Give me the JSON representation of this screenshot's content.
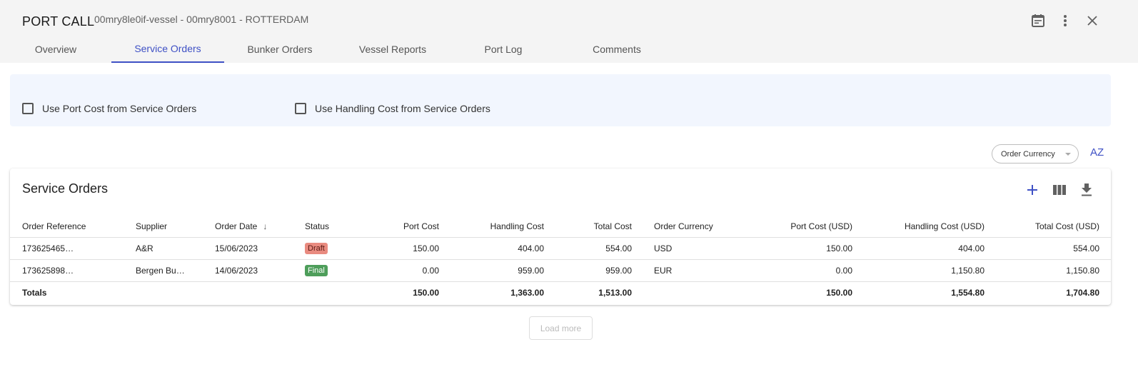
{
  "header": {
    "title": "PORT CALL",
    "subtitle": "00mry8le0if-vessel - 00mry8001 - ROTTERDAM"
  },
  "tabs": [
    {
      "label": "Overview"
    },
    {
      "label": "Service Orders",
      "active": true
    },
    {
      "label": "Bunker Orders"
    },
    {
      "label": "Vessel Reports"
    },
    {
      "label": "Port Log"
    },
    {
      "label": "Comments"
    }
  ],
  "options": {
    "port_cost": "Use Port Cost from Service Orders",
    "handling_cost": "Use Handling Cost from Service Orders"
  },
  "currency_select": {
    "value": "Order Currency"
  },
  "sort_label": "AZ",
  "card": {
    "title": "Service Orders"
  },
  "table": {
    "columns": [
      "Order Reference",
      "Supplier",
      "Order Date",
      "Status",
      "Port Cost",
      "Handling Cost",
      "Total Cost",
      "Order Currency",
      "Port Cost (USD)",
      "Handling Cost (USD)",
      "Total Cost (USD)"
    ],
    "rows": [
      {
        "ref": "173625465…",
        "supplier": "A&R",
        "date": "15/06/2023",
        "status": "Draft",
        "port": "150.00",
        "handling": "404.00",
        "total": "554.00",
        "currency": "USD",
        "port_usd": "150.00",
        "handling_usd": "404.00",
        "total_usd": "554.00"
      },
      {
        "ref": "173625898…",
        "supplier": "Bergen Bu…",
        "date": "14/06/2023",
        "status": "Final",
        "port": "0.00",
        "handling": "959.00",
        "total": "959.00",
        "currency": "EUR",
        "port_usd": "0.00",
        "handling_usd": "1,150.80",
        "total_usd": "1,150.80"
      }
    ],
    "totals": {
      "label": "Totals",
      "port": "150.00",
      "handling": "1,363.00",
      "total": "1,513.00",
      "port_usd": "150.00",
      "handling_usd": "1,554.80",
      "total_usd": "1,704.80"
    }
  },
  "status_colors": {
    "Draft": {
      "bg": "#e98b80",
      "fg": "#5a1a14"
    },
    "Final": {
      "bg": "#4e9e5b",
      "fg": "#ffffff"
    }
  },
  "accent": "#3f51c5",
  "load_more": "Load more"
}
